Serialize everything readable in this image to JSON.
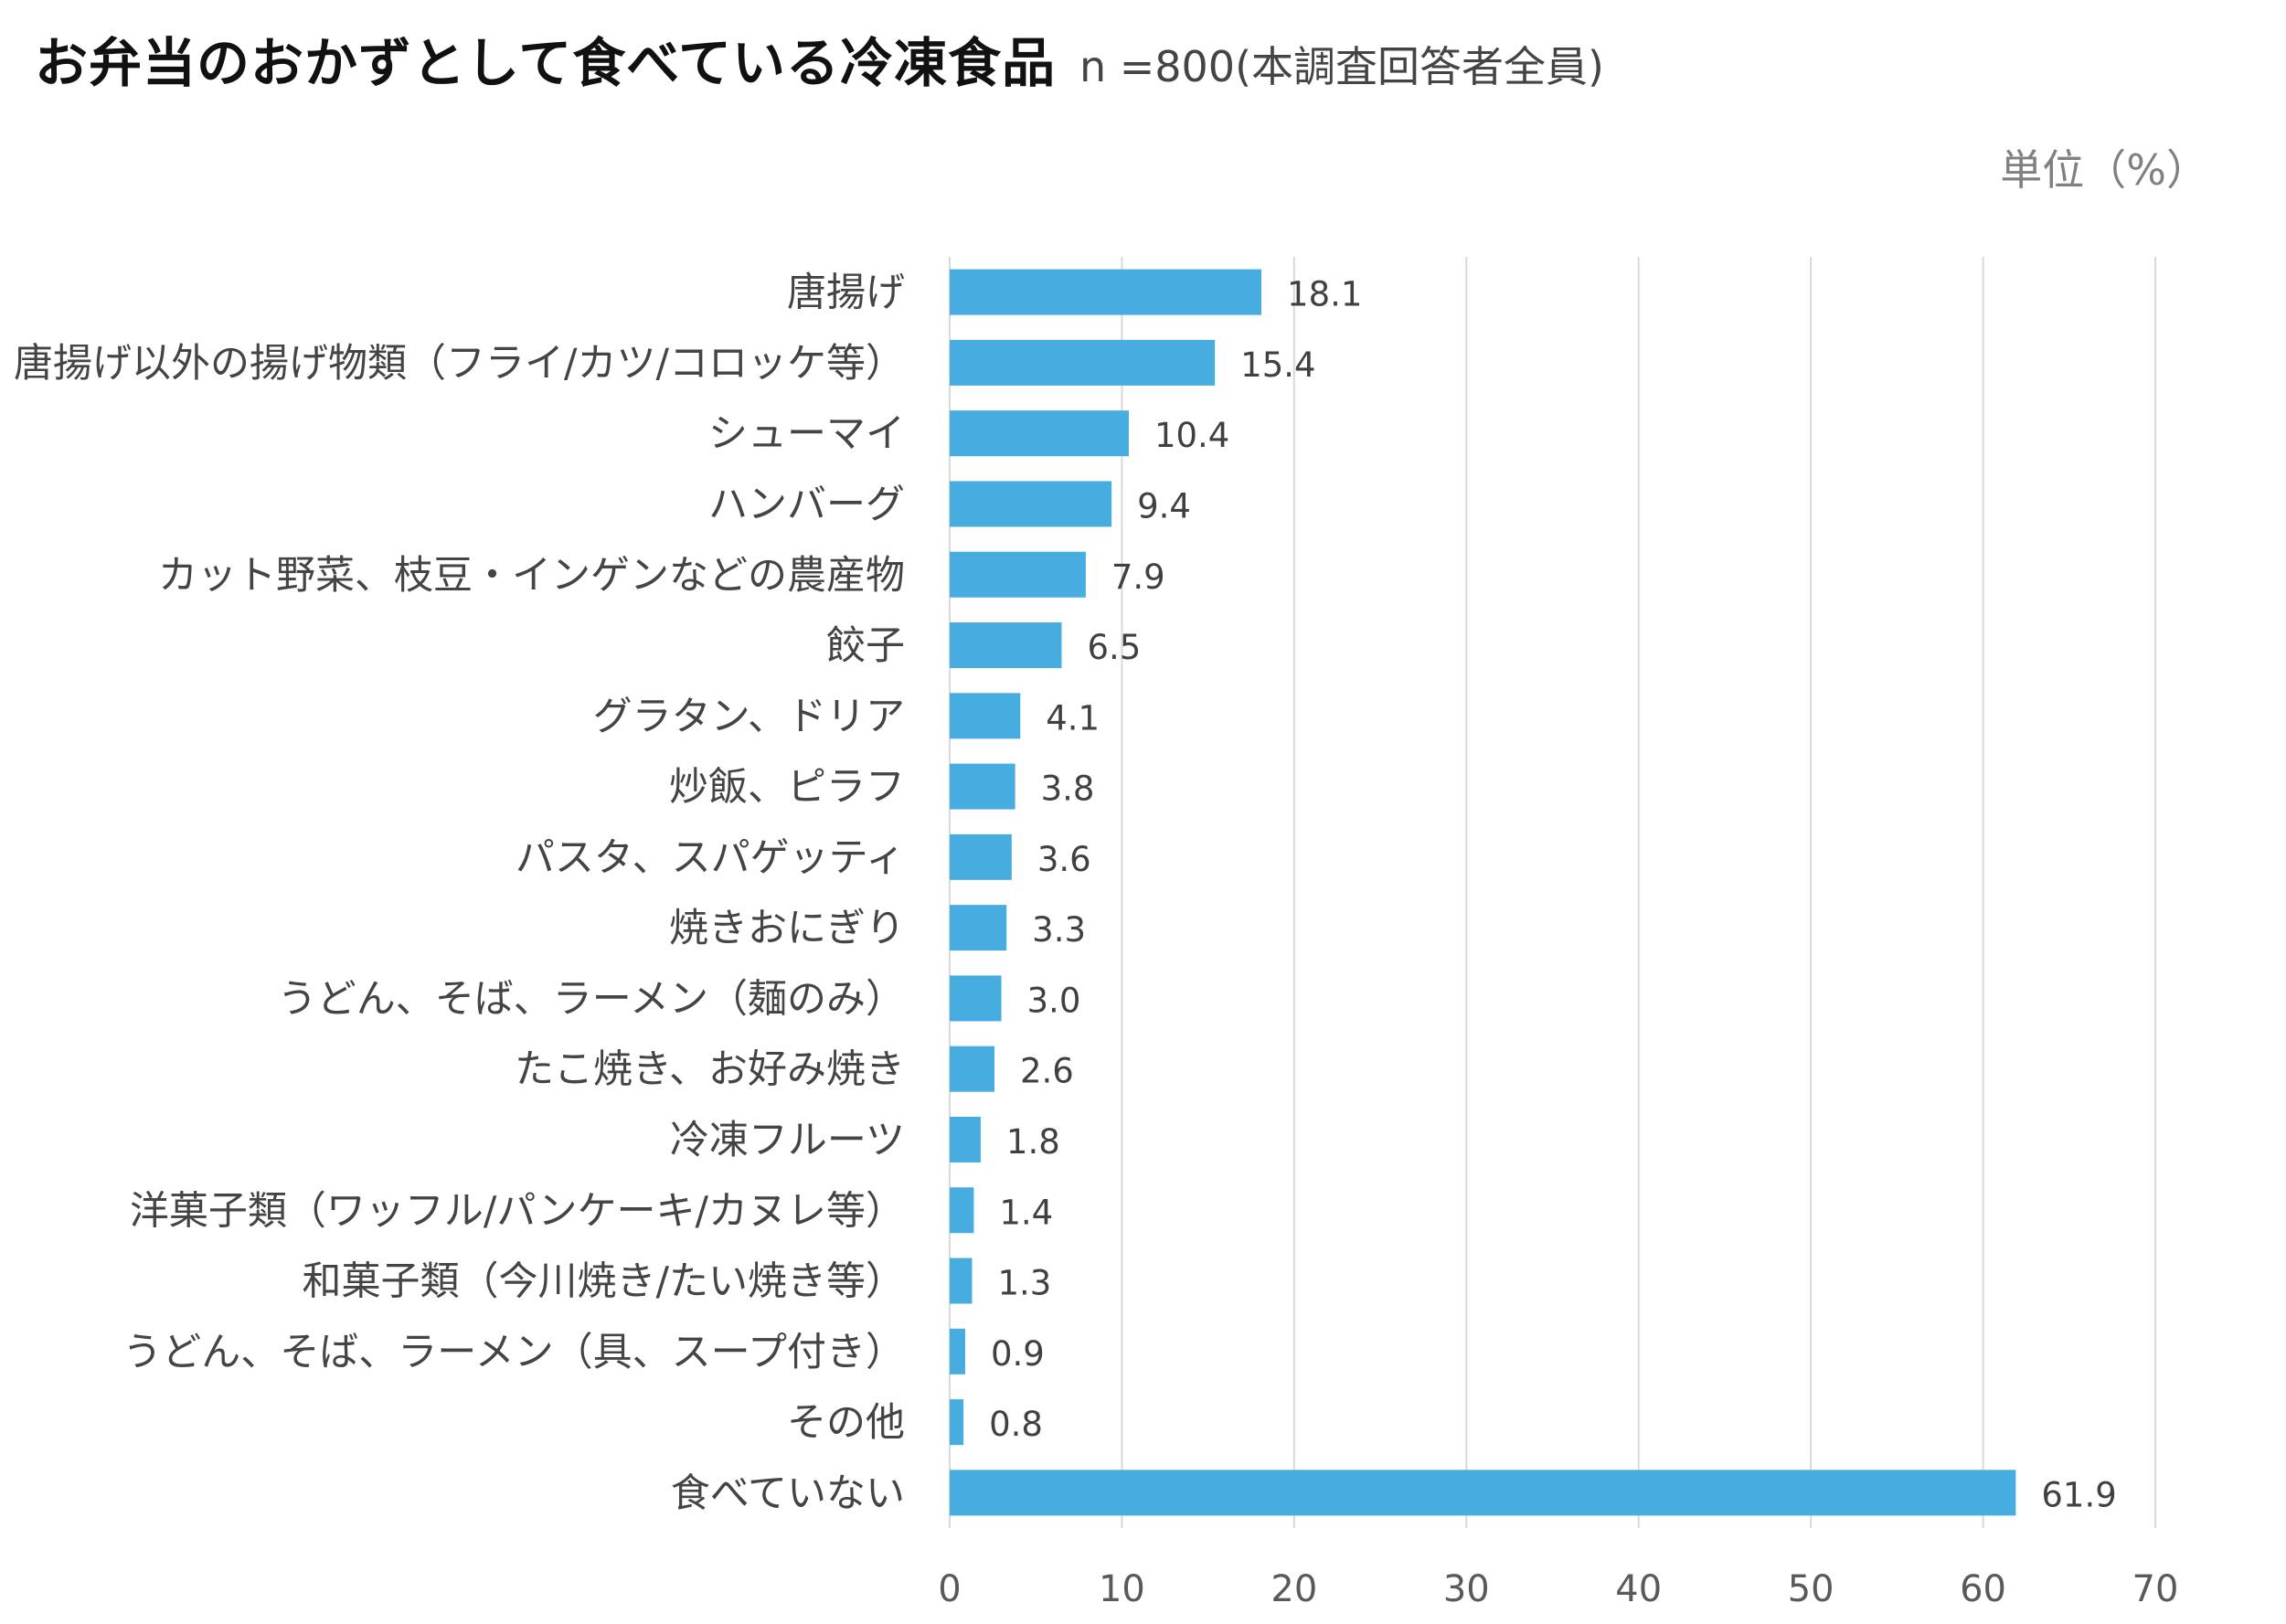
{
  "chart_data": {
    "type": "bar",
    "orientation": "horizontal",
    "title": "お弁当のおかずとして食べている冷凍食品",
    "subtitle": "n =800(本調査回答者全員)",
    "unit": "単位（%）",
    "categories": [
      "唐揚げ",
      "唐揚げ以外の揚げ物類（フライ/カツ/コロッケ等）",
      "シューマイ",
      "ハンバーグ",
      "カット野菜、枝豆・インゲンなどの農産物",
      "餃子",
      "グラタン、ドリア",
      "炒飯、ピラフ",
      "パスタ、スパゲッティ",
      "焼きおにぎり",
      "うどん、そば、ラーメン（麺のみ）",
      "たこ焼き、お好み焼き",
      "冷凍フルーツ",
      "洋菓子類（ワッフル/パンケーキ/カヌレ等）",
      "和菓子類（今川焼き/たい焼き等）",
      "うどん、そば、ラーメン（具、スープ付き）",
      "その他",
      "食べていない"
    ],
    "values": [
      18.1,
      15.4,
      10.4,
      9.4,
      7.9,
      6.5,
      4.1,
      3.8,
      3.6,
      3.3,
      3.0,
      2.6,
      1.8,
      1.4,
      1.3,
      0.9,
      0.8,
      61.9
    ],
    "value_labels": [
      "18.1",
      "15.4",
      "10.4",
      "9.4",
      "7.9",
      "6.5",
      "4.1",
      "3.8",
      "3.6",
      "3.3",
      "3.0",
      "2.6",
      "1.8",
      "1.4",
      "1.3",
      "0.9",
      "0.8",
      "61.9"
    ],
    "xlim": [
      0,
      70
    ],
    "xticks": [
      0,
      10,
      20,
      30,
      40,
      50,
      60,
      70
    ],
    "grid": true,
    "bar_color": "#47ade0",
    "grid_color": "#d9d9d9"
  }
}
